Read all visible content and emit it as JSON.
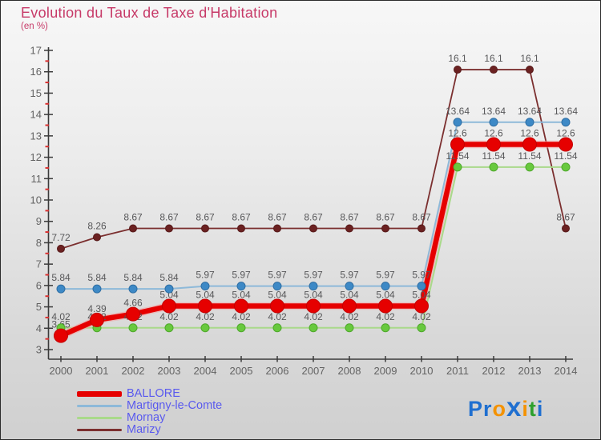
{
  "title": "Evolution du Taux de Taxe d'Habitation",
  "subtitle": "(en %)",
  "title_color": "#c73a68",
  "chart_data": {
    "type": "line",
    "title": "Evolution du Taux de Taxe d'Habitation",
    "subtitle": "(en %)",
    "x": [
      2000,
      2001,
      2002,
      2003,
      2004,
      2005,
      2006,
      2007,
      2008,
      2009,
      2010,
      2011,
      2012,
      2013,
      2014
    ],
    "ylim": [
      3,
      17
    ],
    "y_major_step": 1,
    "y_minor_step": 0.5,
    "grid": false,
    "legend_position": "bottom-left",
    "axis_color": "#3a3a3a",
    "tick_label_color": "#636363",
    "minor_tick_color": "#d93030",
    "value_label_color": "#58585a",
    "series": [
      {
        "name": "BALLORE",
        "line_color": "#e60000",
        "marker_color": "#e60000",
        "marker_edge": "#c40000",
        "line_width": 6.5,
        "marker_radius": 8.5,
        "values": [
          3.65,
          4.39,
          4.66,
          5.04,
          5.04,
          5.04,
          5.04,
          5.04,
          5.04,
          5.04,
          5.04,
          12.6,
          12.6,
          12.6,
          12.6
        ]
      },
      {
        "name": "Martigny-le-Comte",
        "line_color": "#8db9d9",
        "marker_color": "#3d89c6",
        "marker_edge": "#2f6ea3",
        "line_width": 2,
        "marker_radius": 5,
        "values": [
          5.84,
          5.84,
          5.84,
          5.84,
          5.97,
          5.97,
          5.97,
          5.97,
          5.97,
          5.97,
          5.97,
          13.64,
          13.64,
          13.64,
          13.64
        ]
      },
      {
        "name": "Mornay",
        "line_color": "#a9d98a",
        "marker_color": "#68c93e",
        "marker_edge": "#4fa82c",
        "line_width": 2,
        "marker_radius": 5,
        "values": [
          4.02,
          4.02,
          4.02,
          4.02,
          4.02,
          4.02,
          4.02,
          4.02,
          4.02,
          4.02,
          4.02,
          11.54,
          11.54,
          11.54,
          11.54
        ]
      },
      {
        "name": "Marizy",
        "line_color": "#7b2f2f",
        "marker_color": "#6b2121",
        "marker_edge": "#571a1a",
        "line_width": 1.8,
        "marker_radius": 4.5,
        "values": [
          7.72,
          8.26,
          8.67,
          8.67,
          8.67,
          8.67,
          8.67,
          8.67,
          8.67,
          8.67,
          8.67,
          16.1,
          16.1,
          16.1,
          8.67
        ]
      }
    ]
  },
  "legend": {
    "text_color": "#5a5aee"
  },
  "logo": {
    "letters": [
      {
        "ch": "P",
        "color": "#1f6fd0",
        "size": 27
      },
      {
        "ch": "r",
        "color": "#1f6fd0",
        "size": 27
      },
      {
        "ch": "o",
        "color": "#f49200",
        "size": 27
      },
      {
        "ch": "x",
        "color": "#1f6fd0",
        "size": 33
      },
      {
        "ch": "i",
        "color": "#f49200",
        "size": 27
      },
      {
        "ch": "t",
        "color": "#2ea02e",
        "size": 27
      },
      {
        "ch": "i",
        "color": "#1f6fd0",
        "size": 27
      }
    ]
  }
}
